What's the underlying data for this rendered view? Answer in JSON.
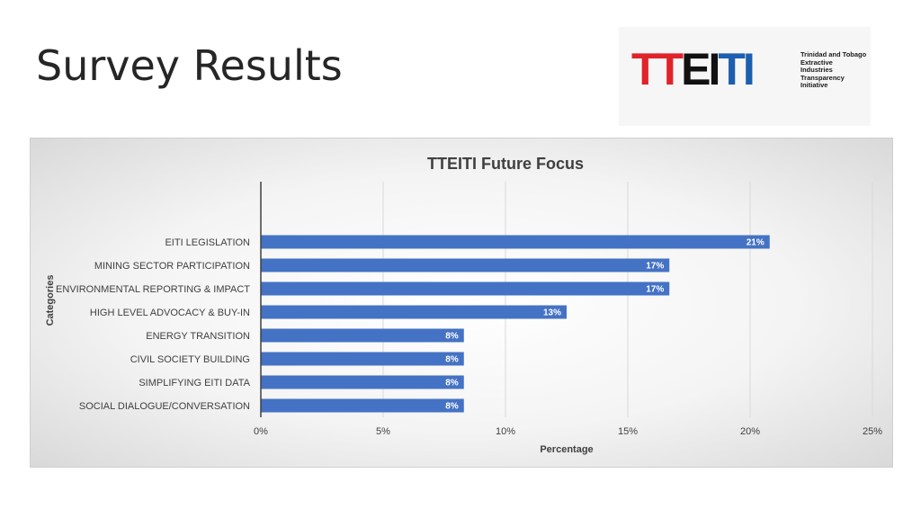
{
  "slide": {
    "title": "Survey Results"
  },
  "logo": {
    "word_red": "TT",
    "word_black": "EI",
    "word_blue": "TI",
    "subtitle_lines": [
      "Trinidad and Tobago",
      "Extractive",
      "Industries",
      "Transparency",
      "Initiative"
    ]
  },
  "colors": {
    "bar": "#4472c4",
    "gridline": "#d9d9d9",
    "axis": "#404040",
    "logo_red": "#e0232a",
    "logo_blue": "#1d5fae"
  },
  "chart_data": {
    "type": "bar",
    "orientation": "horizontal",
    "title": "TTEITI Future Focus",
    "xlabel": "Percentage",
    "ylabel": "Categories",
    "xlim": [
      0,
      25
    ],
    "x_ticks": [
      "0%",
      "5%",
      "10%",
      "15%",
      "20%",
      "25%"
    ],
    "x_tick_values": [
      0,
      5,
      10,
      15,
      20,
      25
    ],
    "grid": "vertical",
    "legend": "none",
    "categories": [
      "EITI LEGISLATION",
      "MINING SECTOR PARTICIPATION",
      "ENVIRONMENTAL REPORTING & IMPACT",
      "HIGH LEVEL ADVOCACY & BUY-IN",
      "ENERGY TRANSITION",
      "CIVIL SOCIETY BUILDING",
      "SIMPLIFYING EITI DATA",
      "SOCIAL DIALOGUE/CONVERSATION"
    ],
    "values": [
      20.8,
      16.7,
      16.7,
      12.5,
      8.3,
      8.3,
      8.3,
      8.3
    ],
    "data_labels": [
      "21%",
      "17%",
      "17%",
      "13%",
      "8%",
      "8%",
      "8%",
      "8%"
    ]
  }
}
